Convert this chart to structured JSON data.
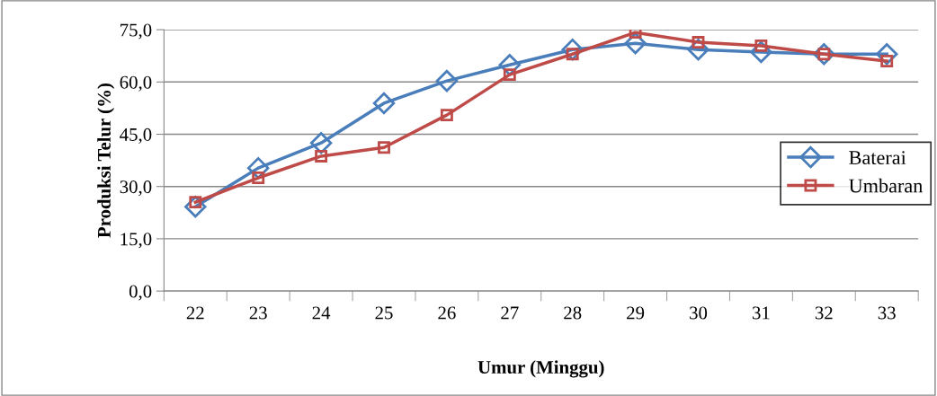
{
  "chart_data": {
    "type": "line",
    "xlabel": "Umur (Minggu)",
    "ylabel": "Produksi Telur (%)",
    "categories": [
      "22",
      "23",
      "24",
      "25",
      "26",
      "27",
      "28",
      "29",
      "30",
      "31",
      "32",
      "33"
    ],
    "series": [
      {
        "name": "Baterai",
        "color": "#4a7ebb",
        "marker": "diamond",
        "values": [
          24.2,
          35.3,
          42.5,
          53.9,
          60.3,
          64.9,
          69.3,
          71.1,
          69.3,
          68.6,
          68.0,
          68.0
        ]
      },
      {
        "name": "Umbaran",
        "color": "#be4b48",
        "marker": "square",
        "values": [
          25.5,
          32.5,
          38.7,
          41.2,
          50.5,
          62.1,
          68.0,
          74.2,
          71.4,
          70.4,
          68.0,
          66.0
        ]
      }
    ],
    "ylim": [
      0,
      75
    ],
    "yticks": [
      {
        "value": 0,
        "label": "0,0"
      },
      {
        "value": 15,
        "label": "15,0"
      },
      {
        "value": 30,
        "label": "30,0"
      },
      {
        "value": 45,
        "label": "45,0"
      },
      {
        "value": 60,
        "label": "60,0"
      },
      {
        "value": 75,
        "label": "75,0"
      }
    ],
    "grid": "y",
    "legend": "right",
    "line_style": "solid"
  }
}
